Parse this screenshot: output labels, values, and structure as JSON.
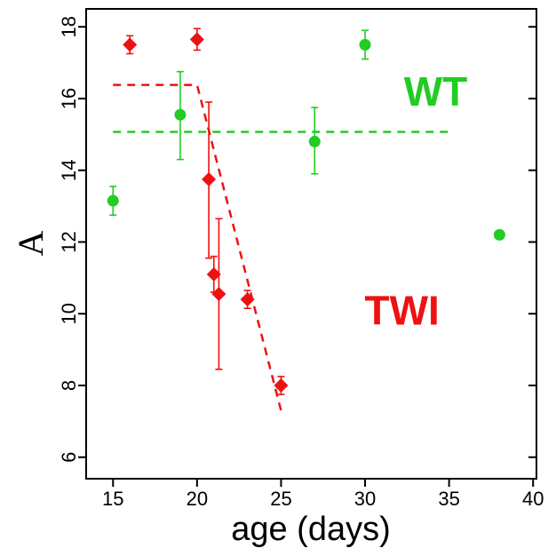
{
  "chart_data": {
    "type": "scatter",
    "xlabel": "age (days)",
    "ylabel": "A",
    "xlim": [
      13.4,
      40.2
    ],
    "ylim": [
      5.4,
      18.5
    ],
    "xticks": [
      15,
      20,
      25,
      30,
      35,
      40
    ],
    "yticks": [
      6,
      8,
      10,
      12,
      14,
      16,
      18
    ],
    "grid": false,
    "series": [
      {
        "name": "WT",
        "color": "#22cc22",
        "marker": "circle",
        "points": [
          {
            "x": 15,
            "y": 13.15,
            "err_low": 0.4,
            "err_high": 0.4
          },
          {
            "x": 19,
            "y": 15.55,
            "err_low": 1.25,
            "err_high": 1.2
          },
          {
            "x": 27,
            "y": 14.8,
            "err_low": 0.9,
            "err_high": 0.95
          },
          {
            "x": 30,
            "y": 17.5,
            "err_low": 0.4,
            "err_high": 0.4
          },
          {
            "x": 38,
            "y": 12.2,
            "err_low": 0,
            "err_high": 0
          }
        ],
        "fit": [
          [
            15,
            15.07
          ],
          [
            35,
            15.07
          ]
        ]
      },
      {
        "name": "TWI",
        "color": "#ee1111",
        "marker": "diamond",
        "points": [
          {
            "x": 16,
            "y": 17.5,
            "err_low": 0.25,
            "err_high": 0.25
          },
          {
            "x": 20,
            "y": 17.65,
            "err_low": 0.3,
            "err_high": 0.3
          },
          {
            "x": 20.7,
            "y": 13.75,
            "err_low": 2.2,
            "err_high": 2.15
          },
          {
            "x": 21.0,
            "y": 11.1,
            "err_low": 0.5,
            "err_high": 0.5
          },
          {
            "x": 21.3,
            "y": 10.55,
            "err_low": 2.1,
            "err_high": 2.1
          },
          {
            "x": 23,
            "y": 10.4,
            "err_low": 0.25,
            "err_high": 0.25
          },
          {
            "x": 25,
            "y": 8.0,
            "err_low": 0.25,
            "err_high": 0.25
          }
        ],
        "fit": [
          [
            15,
            16.38
          ],
          [
            20,
            16.38
          ],
          [
            25,
            7.3
          ]
        ]
      }
    ],
    "annotations": [
      {
        "text": "WT",
        "x": 34.2,
        "y": 15.8,
        "series": "WT"
      },
      {
        "text": "TWI",
        "x": 32.2,
        "y": 9.7,
        "series": "TWI"
      }
    ]
  }
}
